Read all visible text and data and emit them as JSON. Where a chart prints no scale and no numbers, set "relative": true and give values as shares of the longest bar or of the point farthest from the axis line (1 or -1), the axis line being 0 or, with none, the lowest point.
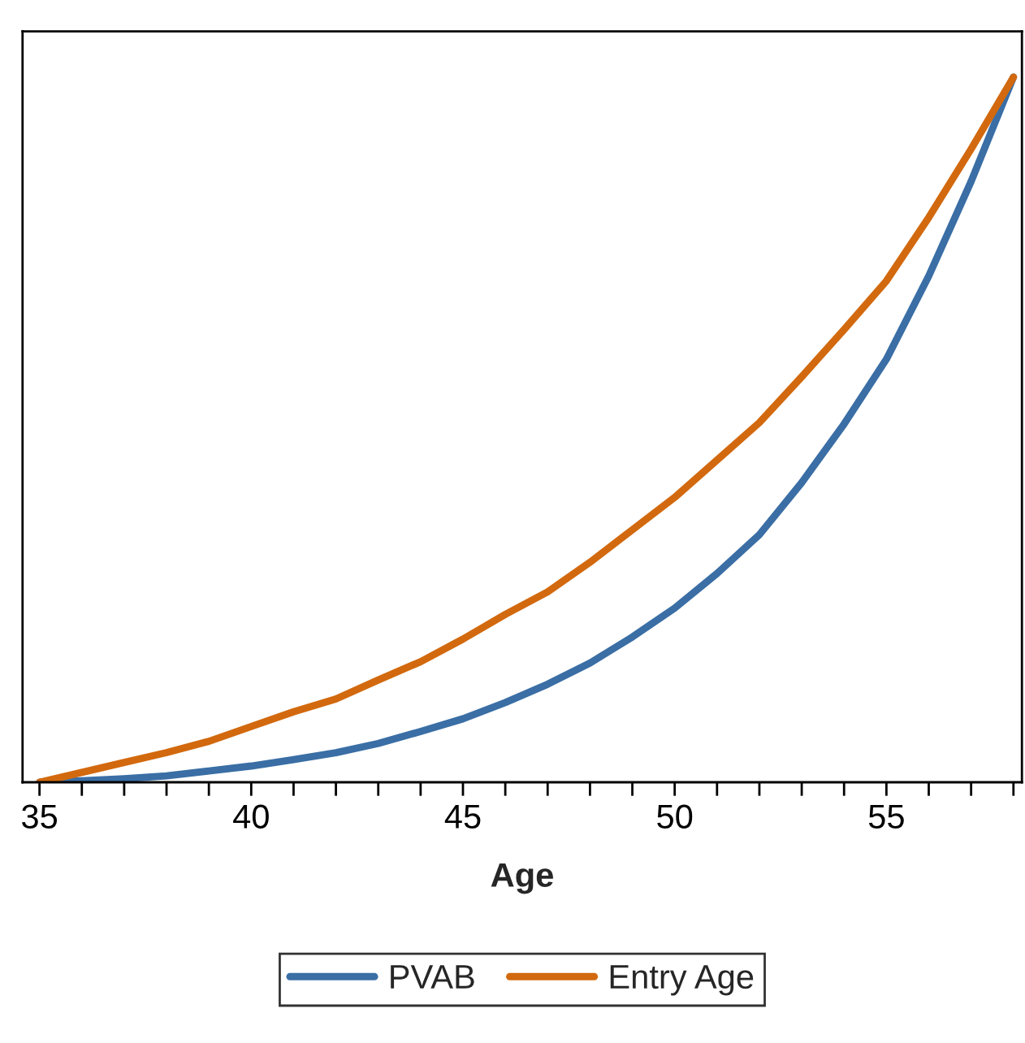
{
  "chart_data": {
    "type": "line",
    "xlabel": "Age",
    "relative": true,
    "legend": "bottom",
    "grid": false,
    "marker": "none",
    "line_style": "solid",
    "xlim": [
      34.6,
      58.2
    ],
    "xticks": [
      35,
      {
        "value": 36,
        "label": null
      },
      {
        "value": 37,
        "label": null
      },
      {
        "value": 38,
        "label": null
      },
      {
        "value": 39,
        "label": null
      },
      40,
      {
        "value": 41,
        "label": null
      },
      {
        "value": 42,
        "label": null
      },
      {
        "value": 43,
        "label": null
      },
      {
        "value": 44,
        "label": null
      },
      45,
      {
        "value": 46,
        "label": null
      },
      {
        "value": 47,
        "label": null
      },
      {
        "value": 48,
        "label": null
      },
      {
        "value": 49,
        "label": null
      },
      50,
      {
        "value": 51,
        "label": null
      },
      {
        "value": 52,
        "label": null
      },
      {
        "value": 53,
        "label": null
      },
      {
        "value": 54,
        "label": null
      },
      55,
      {
        "value": 56,
        "label": null
      },
      {
        "value": 57,
        "label": null
      },
      {
        "value": 58,
        "label": null
      }
    ],
    "x": [
      35,
      36,
      37,
      38,
      39,
      40,
      41,
      42,
      43,
      44,
      45,
      46,
      47,
      48,
      49,
      50,
      51,
      52,
      53,
      54,
      55,
      56,
      57,
      58
    ],
    "series": [
      {
        "name": "PVAB",
        "color": "#3a6ea5",
        "values": [
          0,
          0.002,
          0.005,
          0.009,
          0.016,
          0.023,
          0.032,
          0.042,
          0.055,
          0.072,
          0.09,
          0.113,
          0.139,
          0.169,
          0.206,
          0.247,
          0.296,
          0.351,
          0.425,
          0.508,
          0.6,
          0.718,
          0.852,
          1
        ]
      },
      {
        "name": "Entry Age",
        "color": "#d2690e",
        "values": [
          0,
          0.014,
          0.028,
          0.042,
          0.058,
          0.079,
          0.1,
          0.118,
          0.145,
          0.171,
          0.203,
          0.238,
          0.27,
          0.312,
          0.358,
          0.404,
          0.457,
          0.51,
          0.575,
          0.642,
          0.711,
          0.801,
          0.898,
          1
        ]
      }
    ]
  }
}
